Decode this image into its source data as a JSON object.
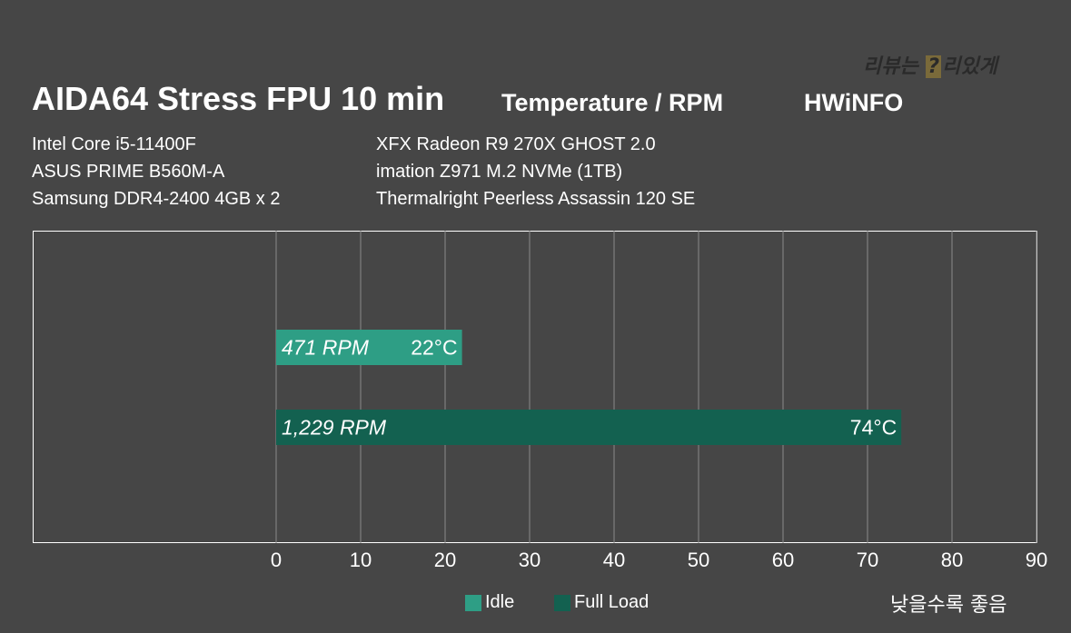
{
  "header": {
    "title": "AIDA64 Stress FPU 10 min",
    "subtitle": "Temperature / RPM",
    "tool": "HWiNFO",
    "watermark_text": "리뷰는 읽리있게",
    "watermark_mark": "?"
  },
  "specs": {
    "left": [
      "Intel Core i5-11400F",
      "ASUS PRIME B560M-A",
      "Samsung DDR4-2400 4GB x 2"
    ],
    "right": [
      "XFX Radeon R9 270X GHOST 2.0",
      "imation Z971 M.2 NVMe (1TB)",
      "Thermalright Peerless Assassin 120 SE"
    ]
  },
  "chart_data": {
    "type": "bar",
    "orientation": "horizontal",
    "categories": [
      "Idle",
      "Full Load"
    ],
    "series": [
      {
        "name": "Idle",
        "value": 22,
        "label": "22°C",
        "rpm_label": "471 RPM",
        "color": "#2e9e85"
      },
      {
        "name": "Full Load",
        "value": 74,
        "label": "74°C",
        "rpm_label": "1,229 RPM",
        "color": "#136150"
      }
    ],
    "xlim": [
      0,
      90
    ],
    "xticks": [
      0,
      10,
      20,
      30,
      40,
      50,
      60,
      70,
      80,
      90
    ],
    "grid": true,
    "legend_position": "bottom"
  },
  "footer_note": "낮을수록 좋음"
}
